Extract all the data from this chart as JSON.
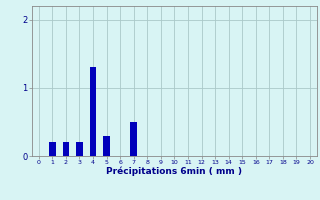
{
  "x_values": [
    0,
    1,
    2,
    3,
    4,
    5,
    6,
    7,
    8,
    9,
    10,
    11,
    12,
    13,
    14,
    15,
    16,
    17,
    18,
    19,
    20
  ],
  "bar_heights": [
    0,
    0.2,
    0.2,
    0.2,
    1.3,
    0.3,
    0,
    0.5,
    0,
    0,
    0,
    0,
    0,
    0,
    0,
    0,
    0,
    0,
    0,
    0,
    0
  ],
  "bar_color": "#0000bb",
  "background_color": "#d8f4f4",
  "grid_color": "#aac8c8",
  "xlabel": "Précipitations 6min ( mm )",
  "xlabel_color": "#00008b",
  "tick_color": "#00008b",
  "ylim": [
    0,
    2.2
  ],
  "xlim": [
    -0.5,
    20.5
  ],
  "yticks": [
    0,
    1,
    2
  ],
  "bar_width": 0.5
}
